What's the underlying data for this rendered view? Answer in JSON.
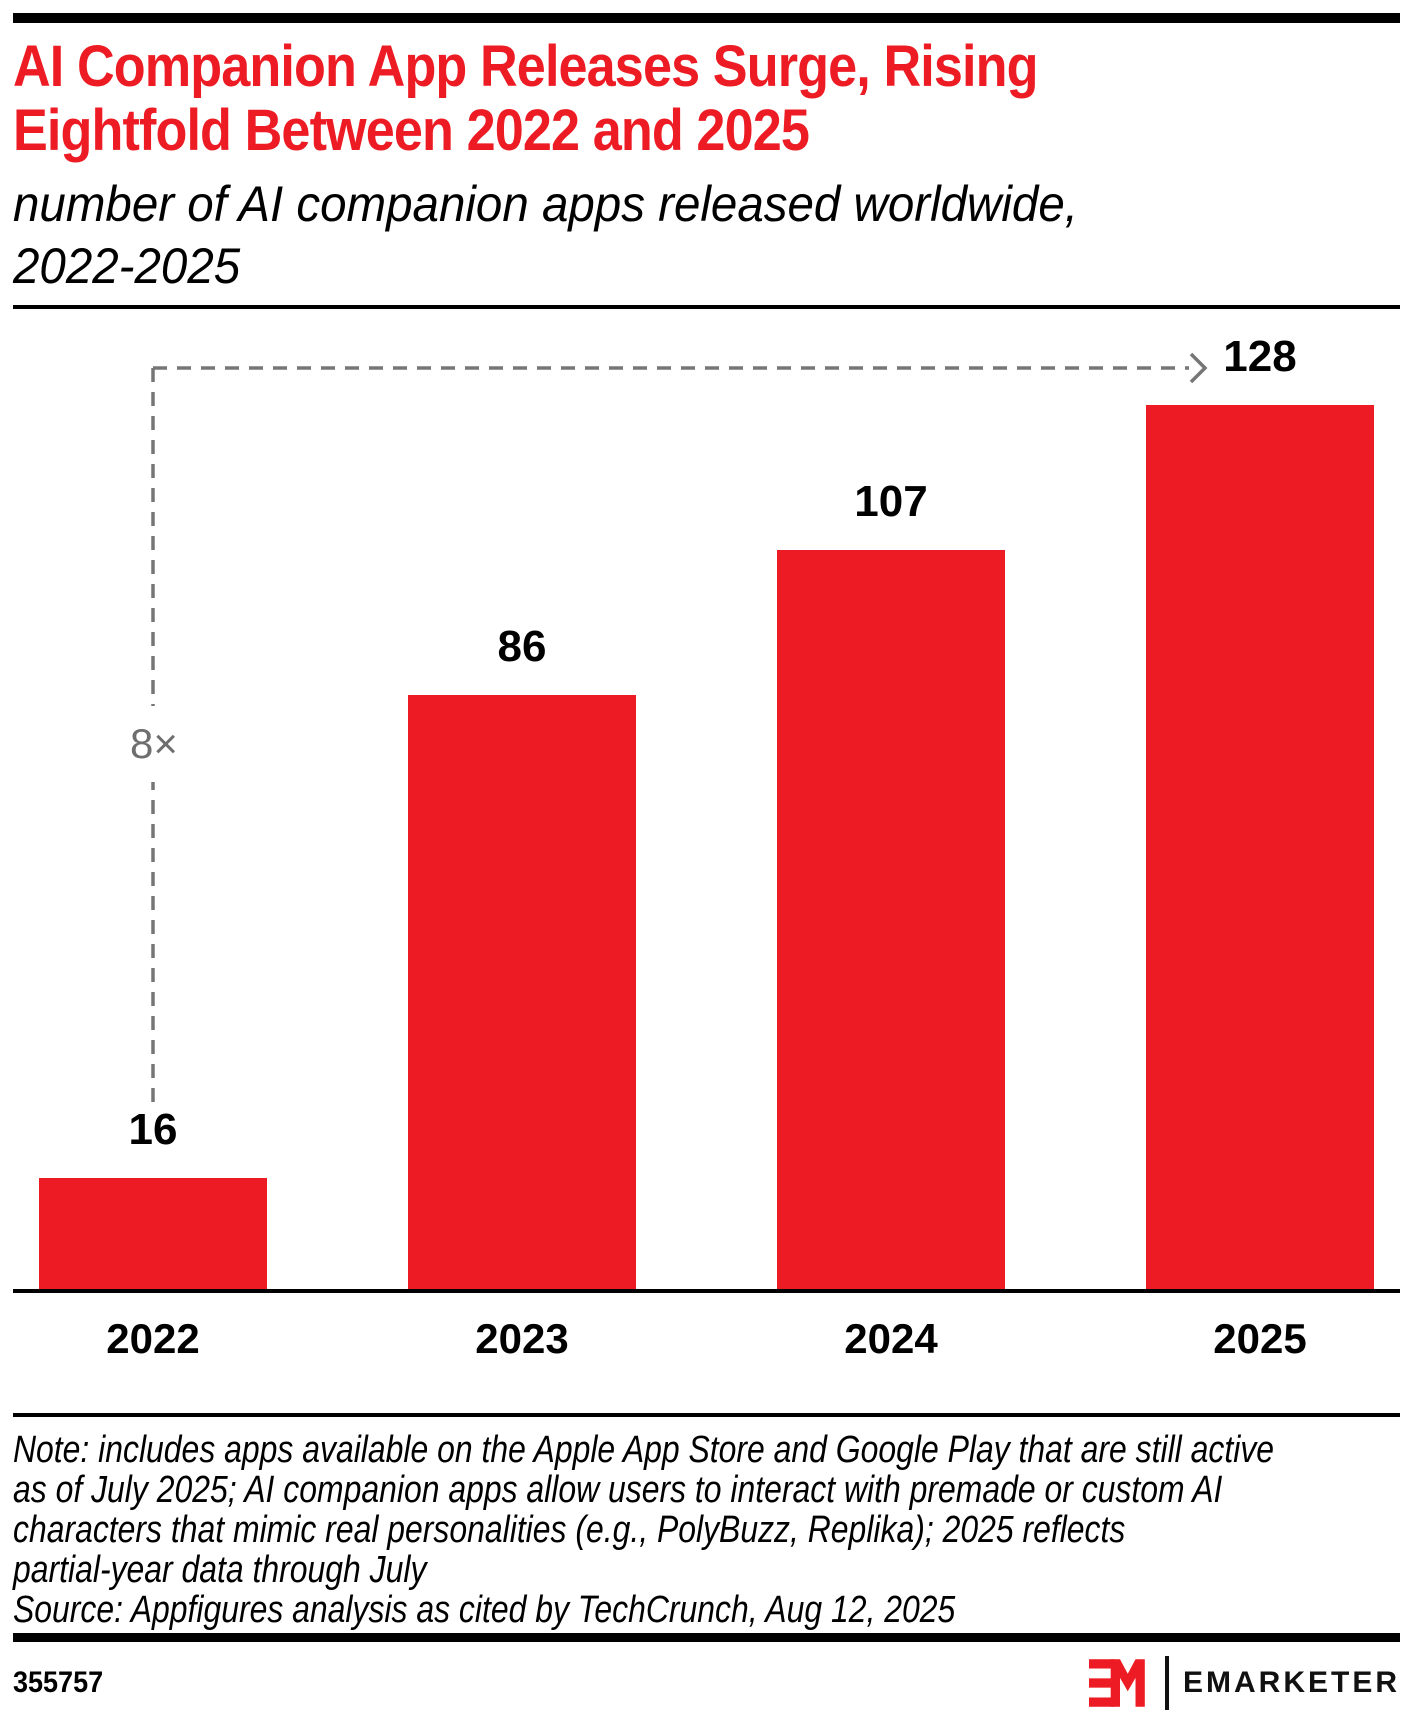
{
  "header": {
    "title": "AI Companion App Releases Surge, Rising\nEightfold Between 2022 and 2025",
    "subtitle": "number of AI companion apps released worldwide,\n2022-2025"
  },
  "chart_data": {
    "type": "bar",
    "title": "AI Companion App Releases Surge, Rising Eightfold Between 2022 and 2025",
    "subtitle": "number of AI companion apps released worldwide, 2022-2025",
    "categories": [
      "2022",
      "2023",
      "2024",
      "2025"
    ],
    "values": [
      16,
      86,
      107,
      128
    ],
    "xlabel": "",
    "ylabel": "number of AI companion apps released",
    "ylim": [
      0,
      128
    ],
    "grid": false,
    "legend": false,
    "bar_color": "#ED1C24",
    "annotation": {
      "label": "8×",
      "points_to_value": 128
    }
  },
  "colors": {
    "accent_red": "#ED1C24",
    "annotation_gray": "#767676",
    "text_black": "#000000"
  },
  "footer": {
    "note": "Note: includes apps available on the Apple App Store and Google Play that are still active\nas of July 2025; AI companion apps allow users to interact with premade or custom AI\ncharacters that mimic real personalities (e.g., PolyBuzz, Replika); 2025 reflects\npartial-year data through July",
    "source": "Source: Appfigures analysis as cited by TechCrunch, Aug 12, 2025",
    "chart_id": "355757",
    "brand": "EMARKETER"
  }
}
